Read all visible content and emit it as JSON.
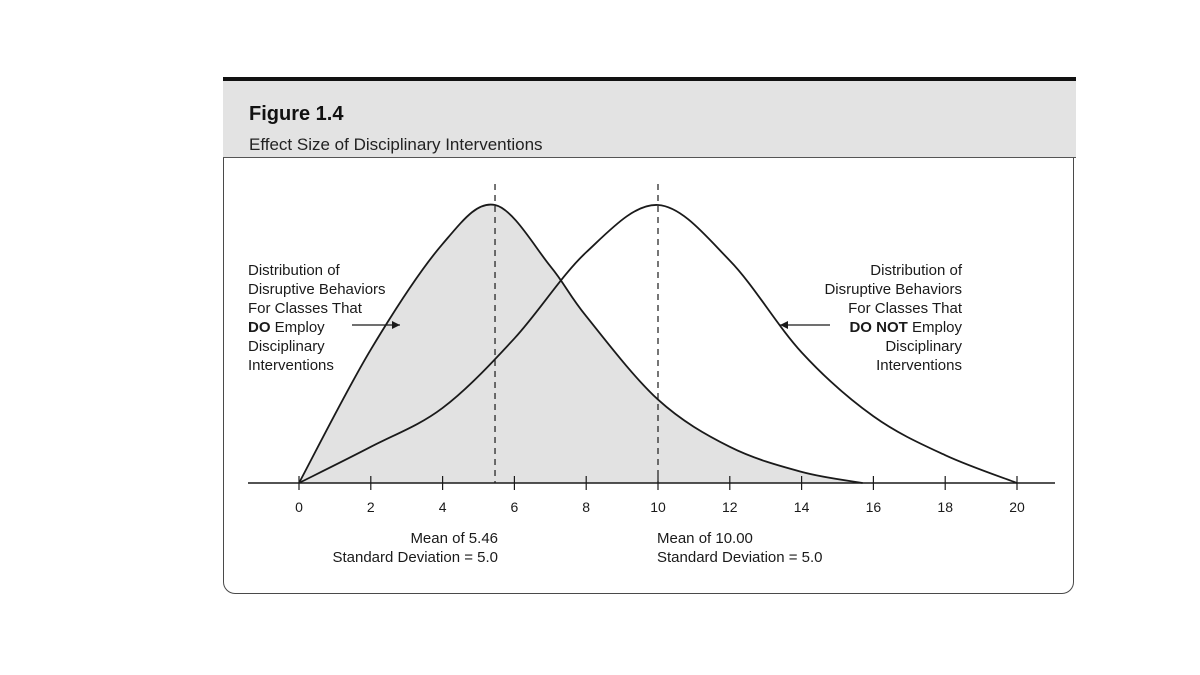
{
  "figure": {
    "number": "Figure 1.4",
    "title": "Effect Size of Disciplinary Interventions"
  },
  "colors": {
    "shaded_fill": "#e2e2e2",
    "curve_stroke": "#1a1a1a",
    "header_bg": "#e3e3e3"
  },
  "chart_data": {
    "type": "area",
    "xlim": [
      0,
      20
    ],
    "x_ticks": [
      "0",
      "2",
      "4",
      "6",
      "8",
      "10",
      "12",
      "14",
      "16",
      "18",
      "20"
    ],
    "grid": false,
    "series": [
      {
        "x": [
          0,
          2,
          4,
          5.46,
          7,
          8,
          10,
          12,
          14,
          15.7
        ],
        "y": [
          0.0,
          0.48,
          0.86,
          1.0,
          0.78,
          0.6,
          0.3,
          0.13,
          0.04,
          0.0
        ],
        "mean": 5.46,
        "shaded": true,
        "label_lines": [
          "Distribution of",
          "Disruptive Behaviors",
          "For Classes That",
          "DO Employ",
          "Disciplinary",
          "Interventions"
        ],
        "stat_lines": [
          "Mean of 5.46",
          "Standard  Deviation = 5.0"
        ]
      },
      {
        "x": [
          0,
          2,
          4,
          6,
          8,
          10,
          12,
          14,
          16,
          18,
          20
        ],
        "y": [
          0.0,
          0.13,
          0.27,
          0.52,
          0.83,
          1.0,
          0.8,
          0.47,
          0.24,
          0.1,
          0.0
        ],
        "mean": 10.0,
        "shaded": false,
        "label_lines": [
          "Distribution of",
          "Disruptive Behaviors",
          "For Classes That",
          "DO NOT Employ",
          "Disciplinary",
          "Interventions"
        ],
        "stat_lines": [
          "Mean of 10.00",
          "Standard  Deviation = 5.0"
        ]
      }
    ]
  }
}
